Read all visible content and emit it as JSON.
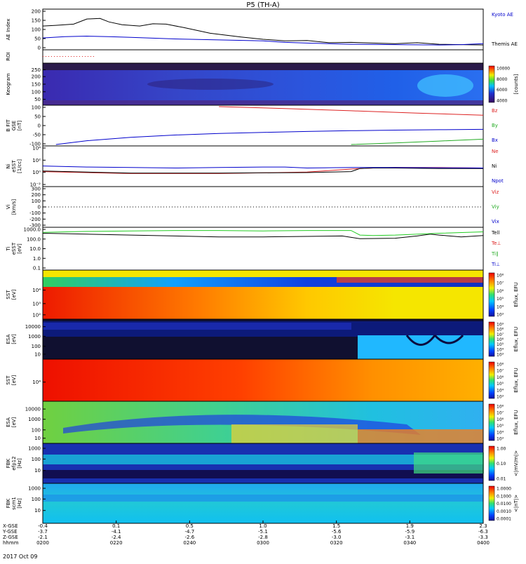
{
  "title": "P5 (TH-A)",
  "footer_date": "2017 Oct 09",
  "chart_data": [
    {
      "type": "line",
      "id": "ae",
      "ylabel": "AE Index",
      "y_ticks": [
        "200",
        "150",
        "100",
        "50",
        "0"
      ],
      "ylim": [
        0,
        200
      ],
      "legend": [
        "Kyoto AE",
        "Themis AE"
      ],
      "series": [
        {
          "name": "Kyoto AE",
          "color": "#000000",
          "x": [
            0,
            0.03,
            0.07,
            0.1,
            0.13,
            0.15,
            0.18,
            0.22,
            0.25,
            0.28,
            0.32,
            0.38,
            0.45,
            0.5,
            0.55,
            0.6,
            0.65,
            0.7,
            0.75,
            0.8,
            0.85,
            0.9,
            0.95,
            1.0
          ],
          "values": [
            118,
            122,
            128,
            155,
            158,
            140,
            125,
            118,
            130,
            128,
            110,
            80,
            60,
            48,
            40,
            42,
            30,
            32,
            28,
            25,
            30,
            22,
            20,
            18
          ]
        },
        {
          "name": "Themis AE",
          "color": "#0000cc",
          "x": [
            0,
            0.05,
            0.1,
            0.15,
            0.2,
            0.3,
            0.4,
            0.5,
            0.55,
            0.6,
            0.65,
            0.7,
            0.8,
            0.9,
            0.95,
            1.0
          ],
          "values": [
            55,
            62,
            65,
            62,
            58,
            50,
            45,
            40,
            32,
            28,
            25,
            22,
            20,
            18,
            20,
            25
          ]
        }
      ]
    },
    {
      "type": "line",
      "id": "roi",
      "ylabel": "ROI",
      "series": [
        {
          "name": "",
          "color": "#dd2222",
          "x": [
            0,
            0.12
          ],
          "values": [
            1,
            1
          ]
        }
      ]
    },
    {
      "type": "heatmap",
      "id": "keogram",
      "ylabel": "Keogram",
      "y_ticks": [
        "250",
        "200",
        "150",
        "100",
        "50"
      ],
      "colorbar_label": "[counts]",
      "colorbar_ticks": [
        "10000",
        "8000",
        "6000",
        "4000"
      ]
    },
    {
      "type": "line",
      "id": "bfield",
      "ylabel": "B FIT",
      "ylabel2": "GSE",
      "ylabel3": "[nT]",
      "y_ticks": [
        "100",
        "50",
        "0",
        "-50",
        "-100"
      ],
      "ylim": [
        -100,
        100
      ],
      "legend": [
        "Bz",
        "By",
        "Bx"
      ],
      "series": [
        {
          "name": "Bz",
          "color": "#dd2222",
          "x": [
            0.4,
            0.55,
            0.7,
            0.85,
            1.0
          ],
          "values": [
            100,
            90,
            78,
            66,
            55
          ]
        },
        {
          "name": "By",
          "color": "#22aa22",
          "x": [
            0.7,
            0.8,
            0.9,
            1.0
          ],
          "values": [
            -100,
            -92,
            -82,
            -72
          ]
        },
        {
          "name": "Bx",
          "color": "#0000cc",
          "x": [
            0.03,
            0.1,
            0.2,
            0.3,
            0.4,
            0.5,
            0.6,
            0.7,
            0.8,
            0.9,
            1.0
          ],
          "values": [
            -100,
            -80,
            -62,
            -50,
            -42,
            -36,
            -31,
            -27,
            -24,
            -22,
            -20
          ]
        }
      ]
    },
    {
      "type": "line",
      "id": "density",
      "ylabel": "Ni",
      "ylabel2": "eSST",
      "ylabel3": "[1/cc]",
      "y_ticks": [
        "10⁴",
        "10²",
        "10⁰",
        "10⁻²"
      ],
      "ylim": [
        -3,
        4.5
      ],
      "legend": [
        "Ne",
        "Ni",
        "Npot"
      ],
      "series": [
        {
          "name": "Ne",
          "color": "#dd2222",
          "x": [
            0,
            0.2,
            0.4,
            0.6,
            0.7,
            0.72,
            0.75,
            0.8,
            0.9,
            1.0
          ],
          "values": [
            -0.3,
            -0.7,
            -0.7,
            -0.4,
            0.2,
            0.3,
            0.4,
            0.5,
            0.5,
            0.4
          ]
        },
        {
          "name": "Ni",
          "color": "#000000",
          "x": [
            0,
            0.2,
            0.4,
            0.6,
            0.7,
            0.72,
            0.75,
            0.8,
            0.9,
            1.0
          ],
          "values": [
            -0.2,
            -0.6,
            -0.6,
            -0.5,
            -0.3,
            0.3,
            0.4,
            0.4,
            0.3,
            0.3
          ]
        },
        {
          "name": "Npot",
          "color": "#0000cc",
          "x": [
            0,
            0.1,
            0.2,
            0.3,
            0.4,
            0.5,
            0.55,
            0.6,
            0.7,
            0.8,
            1.0
          ],
          "values": [
            0.8,
            0.6,
            0.5,
            0.4,
            0.5,
            0.6,
            0.6,
            0.4,
            0.5,
            0.5,
            0.4
          ]
        }
      ]
    },
    {
      "type": "line",
      "id": "velocity",
      "ylabel": "Vi",
      "ylabel3": "[km/s]",
      "y_ticks": [
        "300",
        "200",
        "100",
        "0",
        "-100",
        "-200",
        "-300"
      ],
      "ylim": [
        -300,
        300
      ],
      "legend": [
        "Viz",
        "Viy",
        "Vix"
      ]
    },
    {
      "type": "line",
      "id": "temperature",
      "ylabel": "Ti",
      "ylabel2": "eSST",
      "ylabel3": "[eV]",
      "y_ticks": [
        "1000.0",
        "100.0",
        "10.0",
        "1.0",
        "0.1"
      ],
      "ylim": [
        -1,
        3.4
      ],
      "legend": [
        "Tell",
        "Te⊥",
        "Ti∥",
        "Ti⊥"
      ],
      "series": [
        {
          "name": "Tell",
          "color": "#000000",
          "x": [
            0,
            0.1,
            0.2,
            0.3,
            0.4,
            0.5,
            0.6,
            0.68,
            0.72,
            0.8,
            0.85,
            0.88,
            0.9,
            0.95,
            1.0
          ],
          "values": [
            2.9,
            2.8,
            2.7,
            2.6,
            2.5,
            2.5,
            2.55,
            2.6,
            2.3,
            2.35,
            2.6,
            2.8,
            2.7,
            2.5,
            2.65
          ]
        },
        {
          "name": "Ti∥",
          "color": "#22cc22",
          "x": [
            0,
            0.1,
            0.2,
            0.3,
            0.4,
            0.5,
            0.6,
            0.7,
            0.72,
            0.75,
            0.8,
            0.9,
            1.0
          ],
          "values": [
            3.0,
            3.1,
            3.15,
            3.2,
            3.2,
            3.15,
            3.2,
            3.2,
            2.7,
            2.65,
            2.7,
            2.9,
            3.05
          ]
        }
      ]
    },
    {
      "type": "heatmap",
      "id": "sst_e",
      "ylabel": "SST",
      "ylabel3": "[eV]",
      "y_ticks": [
        "10⁴",
        "10³",
        "10²"
      ],
      "colorbar_label": "Eflux, EFU",
      "colorbar_ticks": [
        "10⁸",
        "10⁷",
        "10⁶",
        "10⁵",
        "10⁴",
        "10³"
      ]
    },
    {
      "type": "heatmap",
      "id": "esa_e",
      "ylabel": "ESA",
      "ylabel3": "[eV]",
      "y_ticks": [
        "10000",
        "1000",
        "100",
        "10"
      ],
      "colorbar_label": "Eflux, EFU",
      "colorbar_ticks": [
        "10⁹",
        "10⁸",
        "10⁷",
        "10⁶",
        "10⁵",
        "10⁴",
        "10³"
      ]
    },
    {
      "type": "heatmap",
      "id": "sst_i",
      "ylabel": "SST",
      "ylabel3": "[eV]",
      "y_ticks": [
        "10⁴"
      ],
      "colorbar_label": "Eflux, EFU",
      "colorbar_ticks": [
        "10⁸",
        "10⁷",
        "10⁶",
        "10⁵",
        "10⁴",
        "10³"
      ]
    },
    {
      "type": "heatmap",
      "id": "esa_i",
      "ylabel": "ESA",
      "ylabel3": "[eV]",
      "y_ticks": [
        "10000",
        "1000",
        "100",
        "10"
      ],
      "colorbar_label": "Eflux, EFU",
      "colorbar_ticks": [
        "10⁸",
        "10⁷",
        "10⁶",
        "10⁵",
        "10⁴",
        "10³"
      ]
    },
    {
      "type": "heatmap",
      "id": "fbk1",
      "ylabel": "FBK",
      "ylabel2": "efp12",
      "ylabel3": "[Hz]",
      "y_ticks": [
        "1000",
        "100",
        "10"
      ],
      "colorbar_label": "<|mV/m|>",
      "colorbar_ticks": [
        "1.00",
        "0.10",
        "0.01"
      ]
    },
    {
      "type": "heatmap",
      "id": "fbk2",
      "ylabel": "FBK",
      "ylabel2": "scm1",
      "ylabel3": "[Hz]",
      "y_ticks": [
        "1000",
        "100",
        "10"
      ],
      "colorbar_label": "<|nT|>",
      "colorbar_ticks": [
        "1.0000",
        "0.1000",
        "0.0100",
        "0.0010",
        "0.0001"
      ]
    }
  ],
  "x_axis": {
    "row_labels": [
      "X-GSE",
      "Y-GSE",
      "Z-GSE",
      "hhmm"
    ],
    "ticks": [
      {
        "x": "-0.4",
        "y": "-3.7",
        "z": "-2.1",
        "time": "0200"
      },
      {
        "x": "0.1",
        "y": "-4.1",
        "z": "-2.4",
        "time": "0220"
      },
      {
        "x": "0.5",
        "y": "-4.7",
        "z": "-2.6",
        "time": "0240"
      },
      {
        "x": "1.0",
        "y": "-5.1",
        "z": "-2.8",
        "time": "0300"
      },
      {
        "x": "1.5",
        "y": "-5.6",
        "z": "-3.0",
        "time": "0320"
      },
      {
        "x": "1.9",
        "y": "-5.9",
        "z": "-3.1",
        "time": "0340"
      },
      {
        "x": "2.3",
        "y": "-6.3",
        "z": "-3.3",
        "time": "0400"
      }
    ]
  }
}
